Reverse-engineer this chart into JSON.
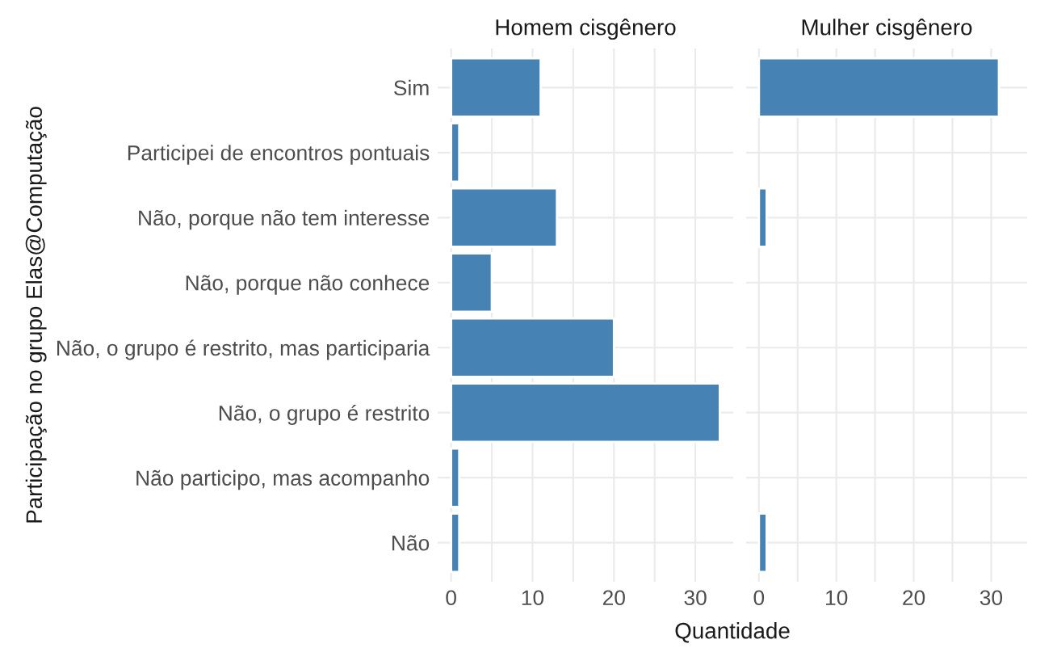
{
  "chart_data": [
    {
      "type": "bar",
      "orientation": "horizontal",
      "title": "Homem cisgênero",
      "ylabel": "Participação no grupo Elas@Computação",
      "xlabel": "Quantidade",
      "categories": [
        "Sim",
        "Participei de encontros pontuais",
        "Não, porque não tem interesse",
        "Não, porque não conhece",
        "Não, o grupo é restrito, mas participaria",
        "Não, o grupo é restrito",
        "Não participo, mas acompanho",
        "Não"
      ],
      "values": [
        11,
        1,
        13,
        5,
        20,
        33,
        1,
        1
      ],
      "color": "#4682b4",
      "xlim": [
        -1.65,
        34.65
      ],
      "xticks": [
        0,
        {
          "value": 5,
          "label": null
        },
        10,
        {
          "value": 15,
          "label": null
        },
        20,
        {
          "value": 25,
          "label": null
        },
        30
      ],
      "grid": true
    },
    {
      "type": "bar",
      "orientation": "horizontal",
      "title": "Mulher cisgênero",
      "values": [
        31,
        null,
        1,
        null,
        null,
        null,
        null,
        1
      ],
      "color": "#4682b4",
      "xlim": [
        -1.65,
        34.65
      ],
      "xticks": [
        0,
        {
          "value": 5,
          "label": null
        },
        10,
        {
          "value": 15,
          "label": null
        },
        20,
        {
          "value": 25,
          "label": null
        },
        30
      ],
      "grid": true,
      "tick_labels": "x"
    }
  ]
}
